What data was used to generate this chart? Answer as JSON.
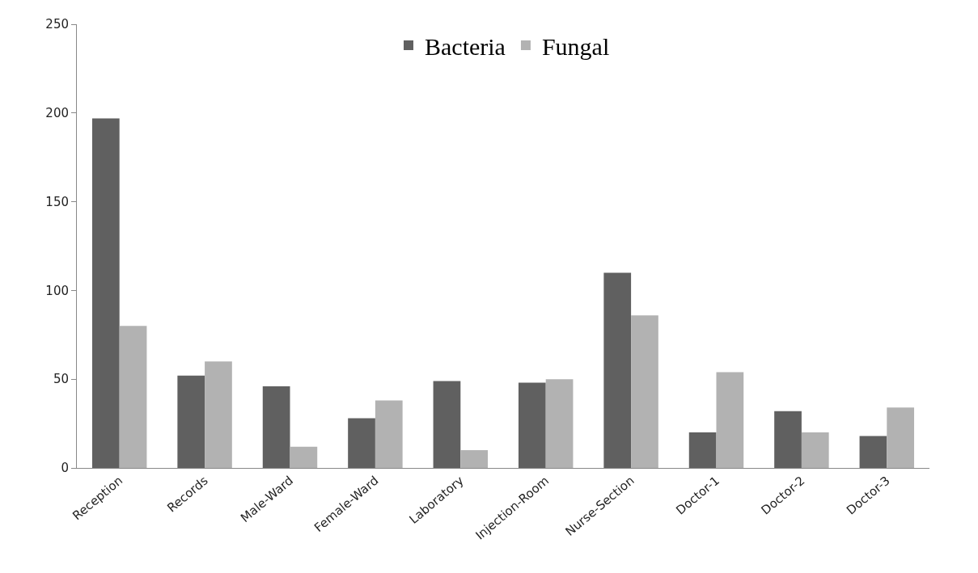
{
  "chart_data": {
    "type": "bar",
    "categories": [
      "Reception",
      "Records",
      "Male-Ward",
      "Female-Ward",
      "Laboratory",
      "Injection-Room",
      "Nurse-Section",
      "Doctor-1",
      "Doctor-2",
      "Doctor-3"
    ],
    "series": [
      {
        "name": "Bacteria",
        "color": "#606060",
        "values": [
          197,
          52,
          46,
          28,
          49,
          48,
          110,
          20,
          32,
          18
        ]
      },
      {
        "name": "Fungal",
        "color": "#b2b2b2",
        "values": [
          80,
          60,
          12,
          38,
          10,
          50,
          86,
          54,
          20,
          34
        ]
      }
    ],
    "ylim": [
      0,
      250
    ],
    "yticks": [
      0,
      50,
      100,
      150,
      200,
      250
    ],
    "legend": "top"
  }
}
